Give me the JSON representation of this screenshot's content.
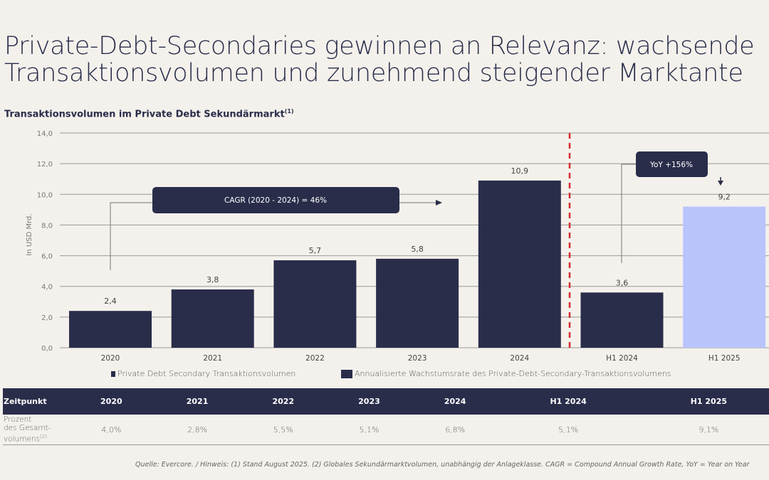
{
  "title_lines": [
    "Private-Debt-Secondaries gewinnen an Relevanz: wachsende",
    "Transaktionsvolumen und zunehmend steigender Marktante"
  ],
  "subtitle": "Transaktionsvolumen im Private Debt Sekundärmarkt",
  "subtitle_sup": "(1)",
  "chart_data": {
    "type": "bar",
    "categories": [
      "2020",
      "2021",
      "2022",
      "2023",
      "2024",
      "H1 2024",
      "H1 2025"
    ],
    "values": [
      2.4,
      3.8,
      5.7,
      5.8,
      10.9,
      3.6,
      9.2
    ],
    "value_labels": [
      "2,4",
      "3,8",
      "5,7",
      "5,8",
      "10,9",
      "3,6",
      "9,2"
    ],
    "ylabel": "In USD Mrd.",
    "ylim": [
      0,
      14
    ],
    "yticks": [
      "0,0",
      "2,0",
      "4,0",
      "6,0",
      "8,0",
      "10,0",
      "12,0",
      "14,0"
    ],
    "grid": true,
    "colors": [
      "#2a2d4a",
      "#2a2d4a",
      "#2a2d4a",
      "#2a2d4a",
      "#2a2d4a",
      "#2a2d4a",
      "#b9c4fb"
    ],
    "divider_color": "#d42a2a",
    "annotations": {
      "cagr": "CAGR (2020 - 2024) = 46%",
      "yoy": "YoY +156%"
    },
    "legend": [
      "Private Debt Secondary Transaktionsvolumen",
      "Annualisierte Wachstumsrate des Private-Debt-Secondary-Transaktionsvolumens"
    ],
    "legend_placement": "bottom"
  },
  "table": {
    "header": [
      "Zeitpunkt",
      "2020",
      "2021",
      "2022",
      "2023",
      "2024",
      "H1 2024",
      "H1 2025"
    ],
    "row_label": [
      "Prozent",
      "des Gesamt-",
      "volumens"
    ],
    "row_label_sup": "(2)",
    "values": [
      "4,0%",
      "2,8%",
      "5,5%",
      "5,1%",
      "6,8%",
      "5,1%",
      "9,1%"
    ]
  },
  "footnote": "Quelle: Evercore. / Hinweis: (1) Stand August 2025. (2) Globales Sekundärmarktvolumen, unabhängig der Anlageklasse. CAGR =  Compound Annual Growth Rate, YoY = Year on Year"
}
